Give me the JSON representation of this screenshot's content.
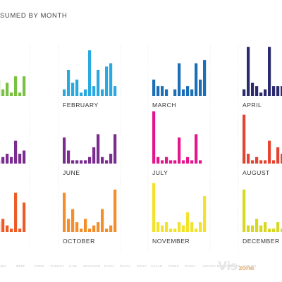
{
  "chart_data": {
    "type": "bar",
    "title": "SUMED BY MONTH",
    "categories": [
      "HANDA",
      "BEEF",
      "PORK",
      "TURKEY",
      "HAM",
      "SEAFOOD",
      "PIZZA",
      "PASTA",
      "SOUP",
      "SALAD",
      "FRIES",
      "SUSHI",
      "VEGGIE BURGER",
      "GREEK YOGURT"
    ],
    "grid": false,
    "legend": "none",
    "panels": [
      {
        "label": "Y",
        "color": "#7ac142",
        "values": [
          5,
          2,
          5,
          3,
          1,
          8,
          5,
          2,
          4,
          1,
          6,
          1,
          6,
          0
        ]
      },
      {
        "label": "FEBRUARY",
        "color": "#2ba8e0",
        "values": [
          2,
          8,
          4,
          5,
          1,
          2,
          14,
          3,
          8,
          2,
          9,
          10,
          3,
          0
        ]
      },
      {
        "label": "MARCH",
        "color": "#1c6fb6",
        "values": [
          5,
          3,
          3,
          2,
          0,
          2,
          10,
          2,
          3,
          2,
          10,
          5,
          11,
          0
        ]
      },
      {
        "label": "APRIL",
        "color": "#2b2a6e",
        "values": [
          2,
          15,
          4,
          3,
          1,
          2,
          15,
          3,
          3,
          3,
          15,
          0,
          0,
          0
        ]
      },
      {
        "label": "",
        "color": "#7b2c91",
        "values": [
          4,
          1,
          3,
          9,
          3,
          3,
          1,
          2,
          3,
          2,
          7,
          3,
          4,
          0
        ]
      },
      {
        "label": "JUNE",
        "color": "#7b2c91",
        "values": [
          8,
          4,
          1,
          1,
          1,
          1,
          2,
          5,
          9,
          2,
          1,
          3,
          9,
          0
        ]
      },
      {
        "label": "JULY",
        "color": "#e5168c",
        "values": [
          16,
          2,
          1,
          2,
          1,
          1,
          8,
          1,
          2,
          1,
          9,
          1,
          0,
          0
        ]
      },
      {
        "label": "AUGUST",
        "color": "#e44432",
        "values": [
          15,
          3,
          1,
          2,
          1,
          1,
          7,
          1,
          5,
          3,
          7,
          3,
          6,
          0
        ]
      },
      {
        "label": "BER",
        "color": "#ed5c27",
        "values": [
          7,
          2,
          6,
          3,
          1,
          9,
          3,
          4,
          2,
          1,
          12,
          1,
          9,
          0
        ]
      },
      {
        "label": "OCTOBER",
        "color": "#f38e2a",
        "values": [
          12,
          4,
          7,
          3,
          1,
          4,
          1,
          2,
          3,
          7,
          1,
          2,
          13,
          0
        ]
      },
      {
        "label": "NOVEMBER",
        "color": "#f3e22a",
        "values": [
          15,
          3,
          2,
          3,
          1,
          1,
          3,
          2,
          6,
          3,
          1,
          3,
          11,
          0
        ]
      },
      {
        "label": "DECEMBER",
        "color": "#d6d823",
        "values": [
          13,
          2,
          2,
          4,
          2,
          3,
          1,
          1,
          3,
          1,
          2,
          3,
          7,
          0
        ]
      }
    ]
  },
  "watermark": {
    "vis": "Vis",
    "zone": "zone"
  }
}
